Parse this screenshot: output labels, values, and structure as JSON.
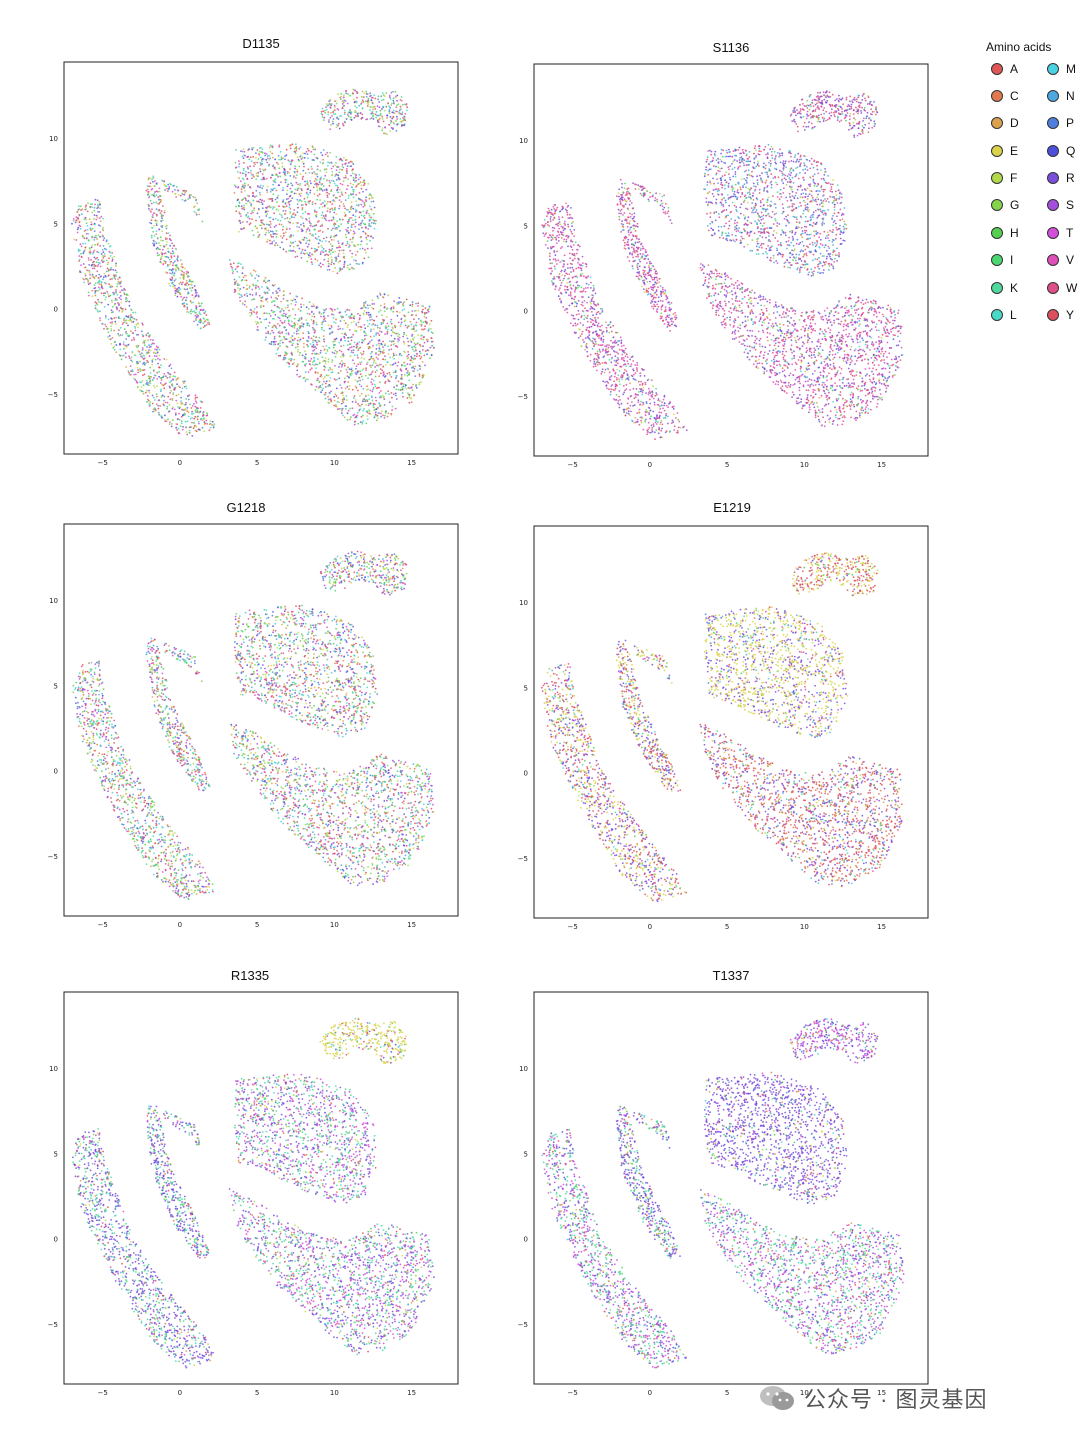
{
  "legend": {
    "title": "Amino acids",
    "items": [
      {
        "label": "A",
        "color": "#e05555"
      },
      {
        "label": "C",
        "color": "#e0794f"
      },
      {
        "label": "D",
        "color": "#dba14f"
      },
      {
        "label": "E",
        "color": "#d9d24a"
      },
      {
        "label": "F",
        "color": "#b2d84c"
      },
      {
        "label": "G",
        "color": "#86d44c"
      },
      {
        "label": "H",
        "color": "#55cf4f"
      },
      {
        "label": "I",
        "color": "#4cd66f"
      },
      {
        "label": "K",
        "color": "#4cd99b"
      },
      {
        "label": "L",
        "color": "#4ad9c6"
      },
      {
        "label": "M",
        "color": "#4ad1e3"
      },
      {
        "label": "N",
        "color": "#4ca8df"
      },
      {
        "label": "P",
        "color": "#4f7fde"
      },
      {
        "label": "Q",
        "color": "#4c4fd9"
      },
      {
        "label": "R",
        "color": "#7a4fdc"
      },
      {
        "label": "S",
        "color": "#a64fdc"
      },
      {
        "label": "T",
        "color": "#d24fdc"
      },
      {
        "label": "V",
        "color": "#df4fb9"
      },
      {
        "label": "W",
        "color": "#df4f8a"
      },
      {
        "label": "Y",
        "color": "#dc4f5c"
      }
    ]
  },
  "watermark": "公众号 · 图灵基因",
  "chart_data": [
    {
      "type": "scatter",
      "title": "D1135",
      "xlim": [
        -7.5,
        18
      ],
      "ylim": [
        -8.5,
        14.5
      ],
      "xticks": [
        "−5",
        "0",
        "5",
        "10",
        "15"
      ],
      "xtick_values": [
        -5,
        0,
        5,
        10,
        15
      ],
      "yticks": [
        "10",
        "5",
        "0",
        "−5"
      ],
      "ytick_values": [
        10,
        5,
        0,
        -5
      ],
      "grid": false,
      "dominant": []
    },
    {
      "type": "scatter",
      "title": "S1136",
      "xlim": [
        -7.5,
        18
      ],
      "ylim": [
        -8.5,
        14.5
      ],
      "xticks": [
        "−5",
        "0",
        "5",
        "10",
        "15"
      ],
      "xtick_values": [
        -5,
        0,
        5,
        10,
        15
      ],
      "yticks": [
        "10",
        "5",
        "0",
        "−5"
      ],
      "ytick_values": [
        10,
        5,
        0,
        -5
      ],
      "grid": false,
      "dominant": [
        "W",
        "R",
        "V"
      ]
    },
    {
      "type": "scatter",
      "title": "G1218",
      "xlim": [
        -7.5,
        18
      ],
      "ylim": [
        -8.5,
        14.5
      ],
      "xticks": [
        "−5",
        "0",
        "5",
        "10",
        "15"
      ],
      "xtick_values": [
        -5,
        0,
        5,
        10,
        15
      ],
      "yticks": [
        "10",
        "5",
        "0",
        "−5"
      ],
      "ytick_values": [
        10,
        5,
        0,
        -5
      ],
      "grid": false,
      "dominant": []
    },
    {
      "type": "scatter",
      "title": "E1219",
      "xlim": [
        -7.5,
        18
      ],
      "ylim": [
        -8.5,
        14.5
      ],
      "xticks": [
        "−5",
        "0",
        "5",
        "10",
        "15"
      ],
      "xtick_values": [
        -5,
        0,
        5,
        10,
        15
      ],
      "yticks": [
        "10",
        "5",
        "0",
        "−5"
      ],
      "ytick_values": [
        10,
        5,
        0,
        -5
      ],
      "grid": false,
      "dominant": [
        "E",
        "Y",
        "R"
      ]
    },
    {
      "type": "scatter",
      "title": "R1335",
      "xlim": [
        -7.5,
        18
      ],
      "ylim": [
        -8.5,
        14.5
      ],
      "xticks": [
        "−5",
        "0",
        "5",
        "10",
        "15"
      ],
      "xtick_values": [
        -5,
        0,
        5,
        10,
        15
      ],
      "yticks": [
        "10",
        "5",
        "0",
        "−5"
      ],
      "ytick_values": [
        10,
        5,
        0,
        -5
      ],
      "grid": false,
      "dominant": [
        "R",
        "K",
        "T",
        "E"
      ]
    },
    {
      "type": "scatter",
      "title": "T1337",
      "xlim": [
        -7.5,
        18
      ],
      "ylim": [
        -8.5,
        14.5
      ],
      "xticks": [
        "−5",
        "0",
        "5",
        "10",
        "15"
      ],
      "xtick_values": [
        -5,
        0,
        5,
        10,
        15
      ],
      "yticks": [
        "10",
        "5",
        "0",
        "−5"
      ],
      "ytick_values": [
        10,
        5,
        0,
        -5
      ],
      "grid": false,
      "dominant": [
        "R",
        "K"
      ]
    }
  ]
}
